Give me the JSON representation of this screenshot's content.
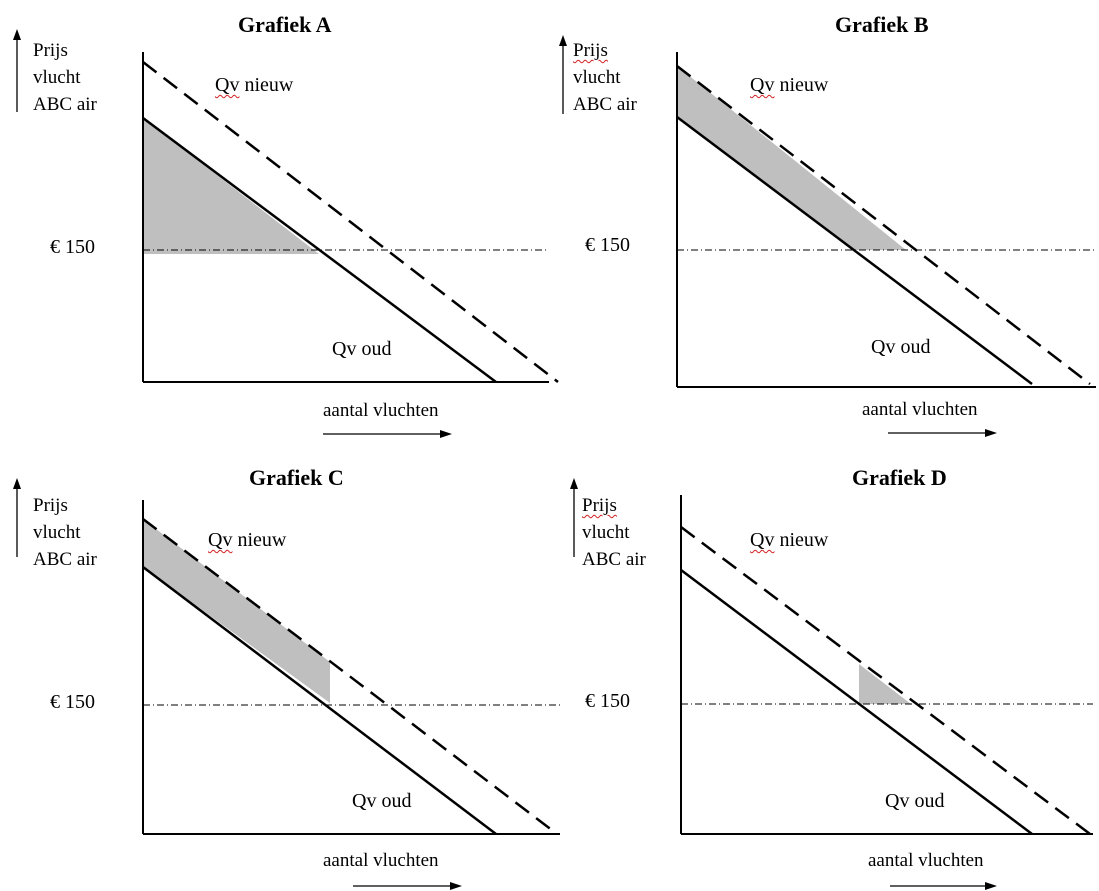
{
  "panels": [
    {
      "title": "Grafiek A",
      "shaded_region": "triangle under old demand line above the € 150 price"
    },
    {
      "title": "Grafiek B",
      "shaded_region": "band between old and new demand lines above € 150"
    },
    {
      "title": "Grafiek C",
      "shaded_region": "band between old and new demand lines, from price axis to the € 150 quantity of old demand"
    },
    {
      "title": "Grafiek D",
      "shaded_region": "small triangle between old and new demand lines just above € 150"
    }
  ],
  "labels": {
    "y_axis_line1": "Prijs",
    "y_axis_line2": "vlucht",
    "y_axis_line3": "ABC air",
    "price_level": "€ 150",
    "demand_new_prefix": "Qv",
    "demand_new_suffix": " nieuw",
    "demand_old": "Qv oud",
    "x_axis": "aantal vluchten"
  },
  "colors": {
    "shade": "#bfbfbf",
    "line": "#000000",
    "spellcheck_underline": "#d32020"
  }
}
